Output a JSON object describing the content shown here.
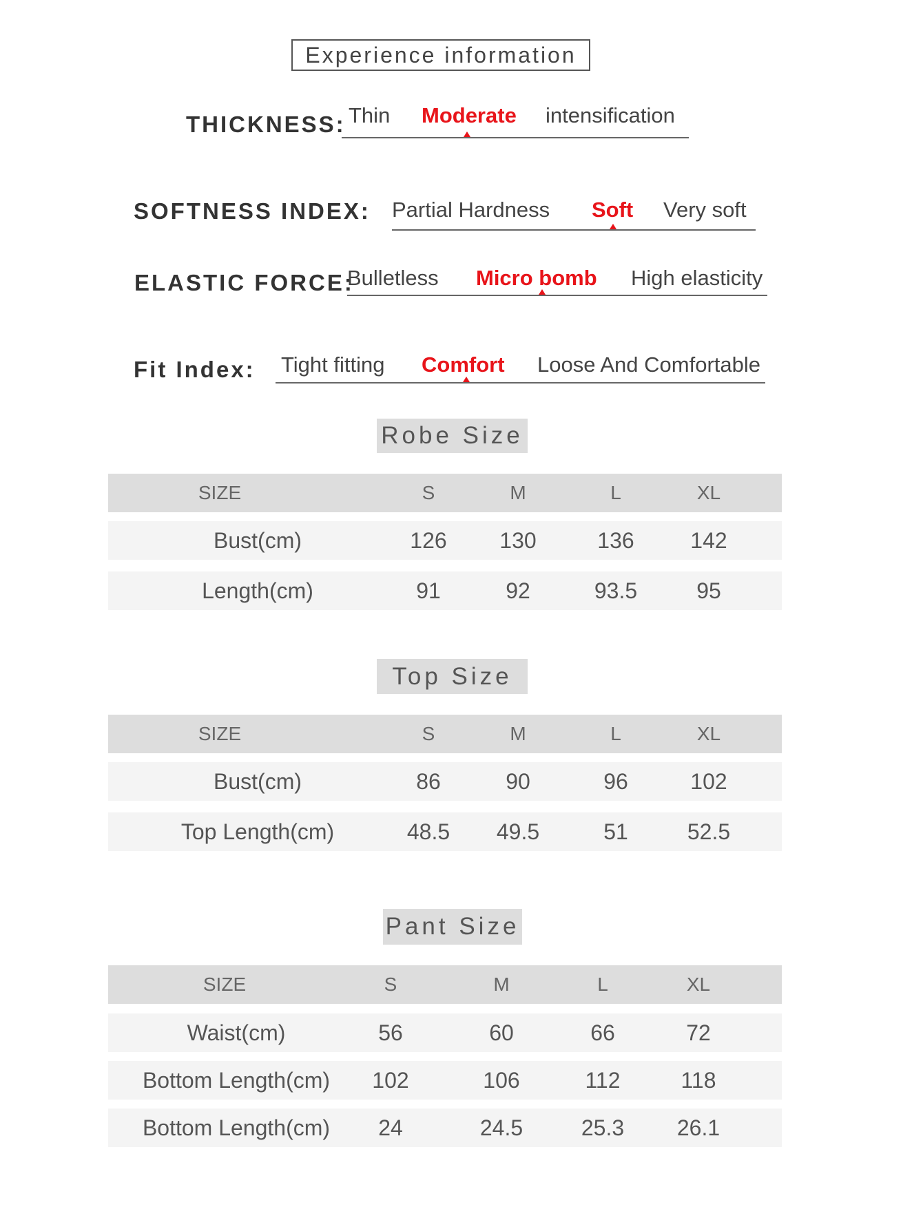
{
  "title": "Experience information",
  "scales": [
    {
      "label": "THICKNESS:",
      "options": [
        "Thin",
        "Moderate",
        "intensification"
      ],
      "selected": 1
    },
    {
      "label": "SOFTNESS INDEX:",
      "options": [
        "Partial Hardness",
        "Soft",
        "Very soft"
      ],
      "selected": 1
    },
    {
      "label": "ELASTIC FORCE:",
      "options": [
        "Bulletless",
        "Micro bomb",
        "High elasticity"
      ],
      "selected": 1
    },
    {
      "label": "Fit Index:",
      "options": [
        "Tight fitting",
        "Comfort",
        "Loose And Comfortable"
      ],
      "selected": 1
    }
  ],
  "tables": [
    {
      "title": "Robe Size",
      "header": [
        "SIZE",
        "S",
        "M",
        "L",
        "XL"
      ],
      "rows": [
        [
          "Bust(cm)",
          "126",
          "130",
          "136",
          "142"
        ],
        [
          "Length(cm)",
          "91",
          "92",
          "93.5",
          "95"
        ]
      ]
    },
    {
      "title": "Top Size",
      "header": [
        "SIZE",
        "S",
        "M",
        "L",
        "XL"
      ],
      "rows": [
        [
          "Bust(cm)",
          "86",
          "90",
          "96",
          "102"
        ],
        [
          "Top Length(cm)",
          "48.5",
          "49.5",
          "51",
          "52.5"
        ]
      ]
    },
    {
      "title": "Pant Size",
      "header": [
        "SIZE",
        "S",
        "M",
        "L",
        "XL"
      ],
      "rows": [
        [
          "Waist(cm)",
          "56",
          "60",
          "66",
          "72"
        ],
        [
          "Bottom Length(cm)",
          "102",
          "106",
          "112",
          "118"
        ],
        [
          "Bottom Length(cm)",
          "24",
          "24.5",
          "25.3",
          "26.1"
        ]
      ]
    }
  ],
  "colors": {
    "selected": "#e8141a",
    "header_bg": "#dddddd",
    "row_bg": "#f4f4f4"
  }
}
